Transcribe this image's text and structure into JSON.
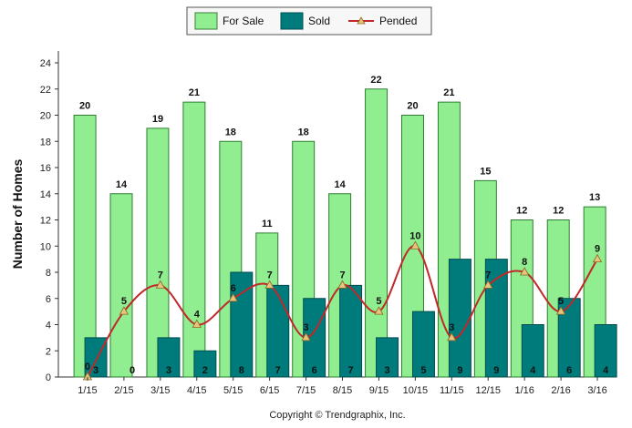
{
  "chart_data": {
    "type": "bar",
    "categories": [
      "1/15",
      "2/15",
      "3/15",
      "4/15",
      "5/15",
      "6/15",
      "7/15",
      "8/15",
      "9/15",
      "10/15",
      "11/15",
      "12/15",
      "1/16",
      "2/16",
      "3/16"
    ],
    "series": [
      {
        "name": "For Sale",
        "type": "bar",
        "values": [
          20,
          14,
          19,
          21,
          18,
          11,
          18,
          14,
          22,
          20,
          21,
          15,
          12,
          12,
          13
        ],
        "color": "#90ee90"
      },
      {
        "name": "Sold",
        "type": "bar",
        "values": [
          3,
          0,
          3,
          2,
          8,
          7,
          6,
          7,
          3,
          5,
          9,
          9,
          4,
          6,
          4
        ],
        "color": "#007b7b"
      },
      {
        "name": "Pended",
        "type": "line",
        "values": [
          0,
          5,
          7,
          4,
          6,
          7,
          3,
          7,
          5,
          10,
          3,
          7,
          8,
          5,
          9
        ],
        "color": "#c0282a"
      }
    ],
    "xlabel": "",
    "ylabel": "Number of Homes",
    "ylim": [
      0,
      24
    ],
    "yticks": [
      0,
      2,
      4,
      6,
      8,
      10,
      12,
      14,
      16,
      18,
      20,
      22,
      24
    ],
    "grid": false,
    "legend_position": "top-center",
    "footer": "Copyright © Trendgraphix, Inc."
  }
}
